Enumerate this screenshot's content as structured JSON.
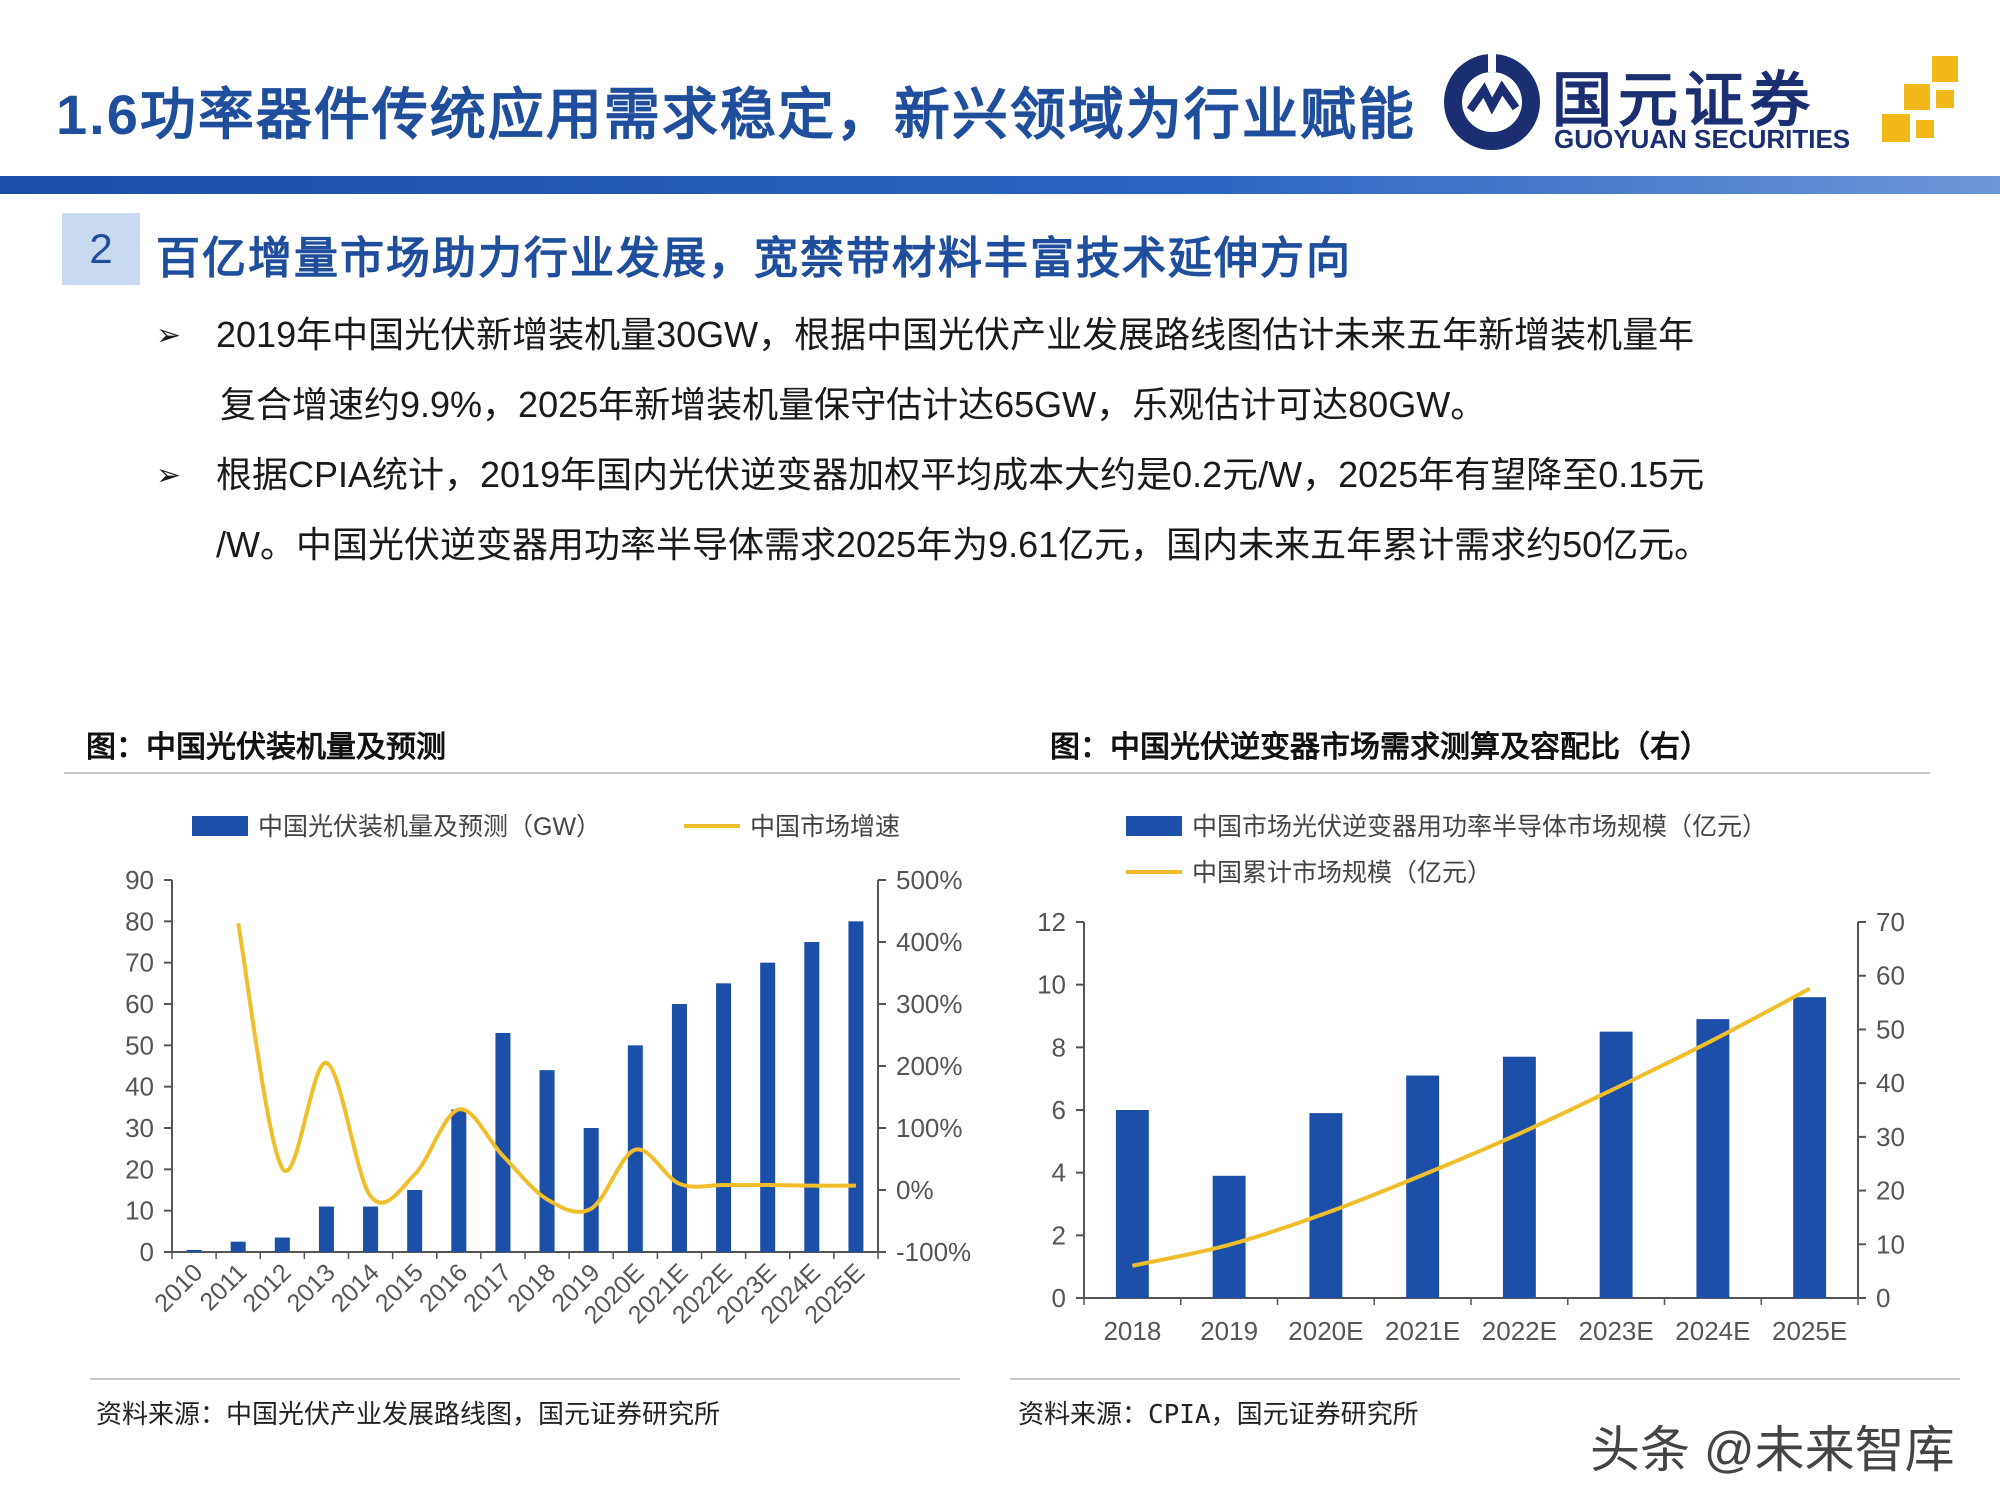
{
  "header": {
    "title": "1.6功率器件传统应用需求稳定，新兴领域为行业赋能",
    "logo_cn": "国元证券",
    "logo_en": "GUOYUAN SECURITIES"
  },
  "section": {
    "number": "2",
    "title": "百亿增量市场助力行业发展，宽禁带材料丰富技术延伸方向"
  },
  "bullets": [
    {
      "marker": "➢",
      "line1": "2019年中国光伏新增装机量30GW，根据中国光伏产业发展路线图估计未来五年新增装机量年",
      "line2": "复合增速约9.9%，2025年新增装机量保守估计达65GW，乐观估计可达80GW。"
    },
    {
      "marker": "➢",
      "line1": "根据CPIA统计，2019年国内光伏逆变器加权平均成本大约是0.2元/W，2025年有望降至0.15元",
      "line2": "/W。中国光伏逆变器用功率半导体需求2025年为9.61亿元，国内未来五年累计需求约50亿元。"
    }
  ],
  "figures": {
    "left_caption": "图：中国光伏装机量及预测",
    "right_caption": "图：中国光伏逆变器市场需求测算及容配比（右）",
    "left_source": "资料来源：中国光伏产业发展路线图，国元证券研究所",
    "right_source": "资料来源：CPIA，国元证券研究所"
  },
  "watermark": "头条 @未来智库",
  "colors": {
    "brand": "#1f4e9c",
    "bar": "#1b4fa8",
    "line": "#f0be2a"
  },
  "chart_data": [
    {
      "type": "bar",
      "categories": [
        "2010",
        "2011",
        "2012",
        "2013",
        "2014",
        "2015",
        "2016",
        "2017",
        "2018",
        "2019",
        "2020E",
        "2021E",
        "2022E",
        "2023E",
        "2024E",
        "2025E"
      ],
      "series": [
        {
          "name": "中国光伏装机量及预测（GW）",
          "type": "bar",
          "axis": "left",
          "values": [
            0.5,
            2.5,
            3.5,
            11,
            11,
            15,
            34.5,
            53,
            44,
            30,
            50,
            60,
            65,
            70,
            75,
            80
          ]
        },
        {
          "name": "中国市场增速",
          "type": "line",
          "axis": "right",
          "values": [
            null,
            430,
            35,
            205,
            -10,
            25,
            130,
            55,
            -15,
            -30,
            65,
            10,
            8,
            8,
            7,
            7
          ]
        }
      ],
      "ylim": [
        0,
        90
      ],
      "yticks": [
        0,
        10,
        20,
        30,
        40,
        50,
        60,
        70,
        80,
        90
      ],
      "y2lim": [
        -100,
        500
      ],
      "y2ticks": [
        "-100%",
        "0%",
        "100%",
        "200%",
        "300%",
        "400%",
        "500%"
      ],
      "legend": "top"
    },
    {
      "type": "bar",
      "categories": [
        "2018",
        "2019",
        "2020E",
        "2021E",
        "2022E",
        "2023E",
        "2024E",
        "2025E"
      ],
      "series": [
        {
          "name": "中国市场光伏逆变器用功率半导体市场规模（亿元）",
          "type": "bar",
          "axis": "left",
          "values": [
            6.0,
            3.9,
            5.9,
            7.1,
            7.7,
            8.5,
            8.9,
            9.6
          ]
        },
        {
          "name": "中国累计市场规模（亿元）",
          "type": "line",
          "axis": "right",
          "values": [
            6.0,
            9.9,
            15.8,
            22.9,
            30.6,
            39.1,
            48.0,
            57.6
          ]
        }
      ],
      "ylim": [
        0,
        12
      ],
      "yticks": [
        0,
        2,
        4,
        6,
        8,
        10,
        12
      ],
      "y2lim": [
        0,
        70
      ],
      "y2ticks": [
        0,
        10,
        20,
        30,
        40,
        50,
        60,
        70
      ],
      "legend": "top"
    }
  ]
}
